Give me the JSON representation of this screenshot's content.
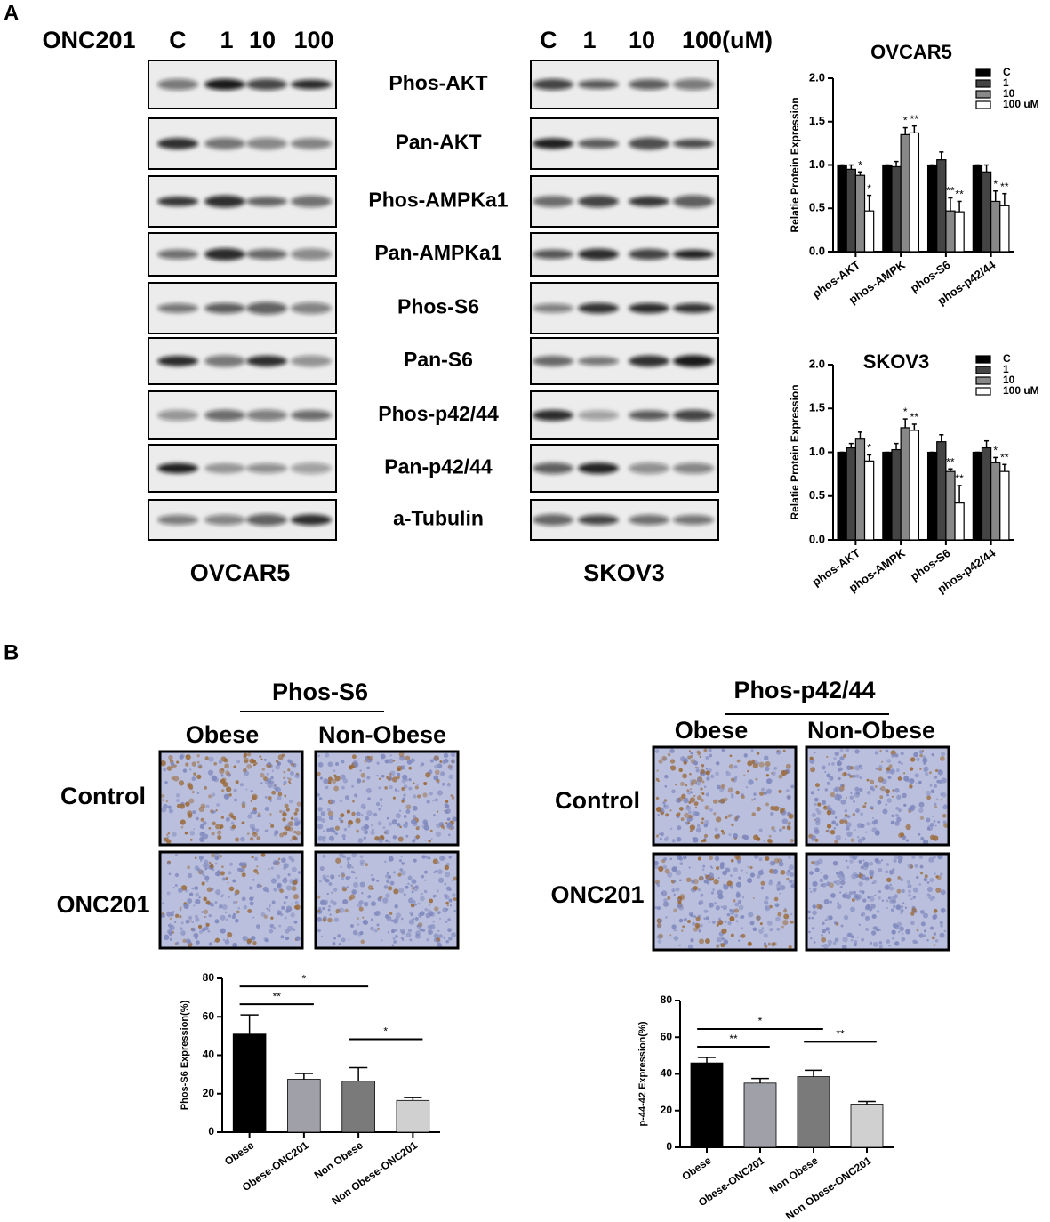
{
  "panel_a": {
    "label": "A",
    "treatment": "ONC201",
    "ovcar5_lanes": [
      "C",
      "1",
      "10",
      "100"
    ],
    "skov3_lanes": [
      "C",
      "1",
      "10",
      "100(uM)"
    ],
    "proteins": [
      "Phos-AKT",
      "Pan-AKT",
      "Phos-AMPKa1",
      "Pan-AMPKa1",
      "Phos-S6",
      "Pan-S6",
      "Phos-p42/44",
      "Pan-p42/44",
      "a-Tubulin"
    ],
    "ovcar5_label": "OVCAR5",
    "skov3_label": "SKOV3"
  },
  "panel_b": {
    "label": "B",
    "ihc": [
      {
        "title": "Phos-S6",
        "columns": [
          "Obese",
          "Non-Obese"
        ],
        "rows": [
          "Control",
          "ONC201"
        ]
      },
      {
        "title": "Phos-p42/44",
        "columns": [
          "Obese",
          "Non-Obese"
        ],
        "rows": [
          "Control",
          "ONC201"
        ]
      }
    ]
  },
  "chart_data": [
    {
      "type": "grouped_bar",
      "title": "OVCAR5",
      "y_label": "Relatie Protein Expression",
      "categories": [
        "phos-AKT",
        "phos-AMPK",
        "phos-S6",
        "phos-p42/44"
      ],
      "series": [
        {
          "name": "C",
          "color": "#000000",
          "values": [
            1.0,
            1.0,
            1.0,
            1.0
          ],
          "errors": [
            0,
            0,
            0,
            0
          ],
          "significance": [
            null,
            null,
            null,
            null
          ]
        },
        {
          "name": "1",
          "color": "#444444",
          "values": [
            0.95,
            0.98,
            1.06,
            0.92
          ],
          "errors": [
            0.05,
            0.06,
            0.09,
            0.08
          ],
          "significance": [
            null,
            null,
            null,
            null
          ]
        },
        {
          "name": "10",
          "color": "#888888",
          "values": [
            0.88,
            1.35,
            0.47,
            0.58
          ],
          "errors": [
            0.04,
            0.08,
            0.15,
            0.12
          ],
          "significance": [
            "*",
            "*",
            "**",
            "*"
          ]
        },
        {
          "name": "100 uM",
          "color": "#ffffff",
          "values": [
            0.47,
            1.37,
            0.46,
            0.53
          ],
          "errors": [
            0.18,
            0.08,
            0.12,
            0.14
          ],
          "significance": [
            "*",
            "**",
            "**",
            "**"
          ]
        }
      ],
      "ylim": [
        0,
        2
      ],
      "yticks": [
        {
          "value": 0,
          "label": "0.0"
        },
        {
          "value": 0.5,
          "label": "0.5"
        },
        {
          "value": 1,
          "label": "1.0"
        },
        {
          "value": 1.5,
          "label": "1.5"
        },
        {
          "value": 2,
          "label": "2.0"
        }
      ],
      "legend": "top-right"
    },
    {
      "type": "grouped_bar",
      "title": "SKOV3",
      "y_label": "Relatie Protein Expression",
      "categories": [
        "phos-AKT",
        "phos-AMPK",
        "phos-S6",
        "phos-p42/44"
      ],
      "series": [
        {
          "name": "C",
          "color": "#000000",
          "values": [
            1.0,
            1.0,
            1.0,
            1.0
          ],
          "errors": [
            0,
            0,
            0,
            0
          ],
          "significance": [
            null,
            null,
            null,
            null
          ]
        },
        {
          "name": "1",
          "color": "#444444",
          "values": [
            1.05,
            1.03,
            1.12,
            1.05
          ],
          "errors": [
            0.05,
            0.07,
            0.08,
            0.08
          ],
          "significance": [
            null,
            null,
            null,
            null
          ]
        },
        {
          "name": "10",
          "color": "#888888",
          "values": [
            1.15,
            1.28,
            0.78,
            0.88
          ],
          "errors": [
            0.08,
            0.1,
            0.03,
            0.06
          ],
          "significance": [
            null,
            "*",
            "**",
            "*"
          ]
        },
        {
          "name": "100 uM",
          "color": "#ffffff",
          "values": [
            0.9,
            1.25,
            0.42,
            0.78
          ],
          "errors": [
            0.07,
            0.07,
            0.2,
            0.08
          ],
          "significance": [
            "*",
            "**",
            "**",
            "**"
          ]
        }
      ],
      "ylim": [
        0,
        2
      ],
      "yticks": [
        {
          "value": 0,
          "label": "0.0"
        },
        {
          "value": 0.5,
          "label": "0.5"
        },
        {
          "value": 1,
          "label": "1.0"
        },
        {
          "value": 1.5,
          "label": "1.5"
        },
        {
          "value": 2,
          "label": "2.0"
        }
      ],
      "legend": "top-right"
    },
    {
      "type": "bar",
      "y_label": "Phos-S6 Expression(%)",
      "categories": [
        "Obese",
        "Obese-ONC201",
        "Non Obese",
        "Non Obese-ONC201"
      ],
      "values": [
        51,
        27.5,
        26.5,
        16.5
      ],
      "errors": [
        10,
        3,
        7,
        1.5
      ],
      "colors": [
        "#000000",
        "#a0a0a8",
        "#7a7a7a",
        "#d0d0d0"
      ],
      "ylim": [
        0,
        80
      ],
      "yticks": [
        0,
        20,
        40,
        60,
        80
      ],
      "brackets": [
        {
          "from": "Obese",
          "to": "Obese-ONC201",
          "label": "**"
        },
        {
          "from": "Obese",
          "to": "Non Obese",
          "label": "*"
        },
        {
          "from": "Non Obese",
          "to": "Non Obese-ONC201",
          "label": "*"
        }
      ]
    },
    {
      "type": "bar",
      "y_label": "p-44-42 Expression(%)",
      "categories": [
        "Obese",
        "Obese-ONC201",
        "Non Obese",
        "Non Obese-ONC201"
      ],
      "values": [
        46,
        35,
        38.5,
        23.5
      ],
      "errors": [
        3,
        2.5,
        3.5,
        1.5
      ],
      "colors": [
        "#000000",
        "#a0a0a8",
        "#7a7a7a",
        "#d0d0d0"
      ],
      "ylim": [
        0,
        80
      ],
      "yticks": [
        0,
        20,
        40,
        60,
        80
      ],
      "brackets": [
        {
          "from": "Obese",
          "to": "Obese-ONC201",
          "label": "**"
        },
        {
          "from": "Obese",
          "to": "Non Obese",
          "label": "*"
        },
        {
          "from": "Non Obese",
          "to": "Non Obese-ONC201",
          "label": "**"
        }
      ]
    }
  ]
}
